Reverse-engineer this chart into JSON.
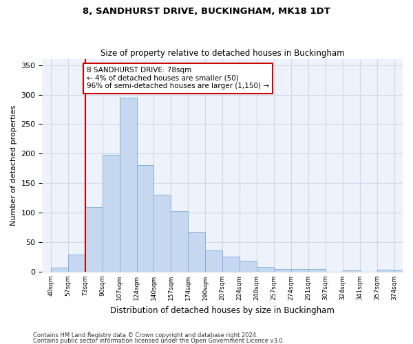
{
  "title1": "8, SANDHURST DRIVE, BUCKINGHAM, MK18 1DT",
  "title2": "Size of property relative to detached houses in Buckingham",
  "xlabel": "Distribution of detached houses by size in Buckingham",
  "ylabel": "Number of detached properties",
  "categories": [
    "40sqm",
    "57sqm",
    "73sqm",
    "90sqm",
    "107sqm",
    "124sqm",
    "140sqm",
    "157sqm",
    "174sqm",
    "190sqm",
    "207sqm",
    "224sqm",
    "240sqm",
    "257sqm",
    "274sqm",
    "291sqm",
    "307sqm",
    "324sqm",
    "341sqm",
    "357sqm",
    "374sqm"
  ],
  "values": [
    7,
    29,
    110,
    198,
    295,
    180,
    130,
    102,
    68,
    36,
    25,
    18,
    8,
    5,
    4,
    4,
    0,
    2,
    0,
    3,
    2
  ],
  "bar_color": "#c5d8f0",
  "bar_edgecolor": "#7aadd4",
  "grid_color": "#d0d8e8",
  "background_color": "#edf2fb",
  "annotation_line1": "8 SANDHURST DRIVE: 78sqm",
  "annotation_line2": "← 4% of detached houses are smaller (50)",
  "annotation_line3": "96% of semi-detached houses are larger (1,150) →",
  "annotation_box_edgecolor": "#cc0000",
  "vline_color": "#cc0000",
  "footer1": "Contains HM Land Registry data © Crown copyright and database right 2024.",
  "footer2": "Contains public sector information licensed under the Open Government Licence v3.0.",
  "ylim": [
    0,
    360
  ],
  "yticks": [
    0,
    50,
    100,
    150,
    200,
    250,
    300,
    350
  ],
  "vline_pos": 1.5
}
